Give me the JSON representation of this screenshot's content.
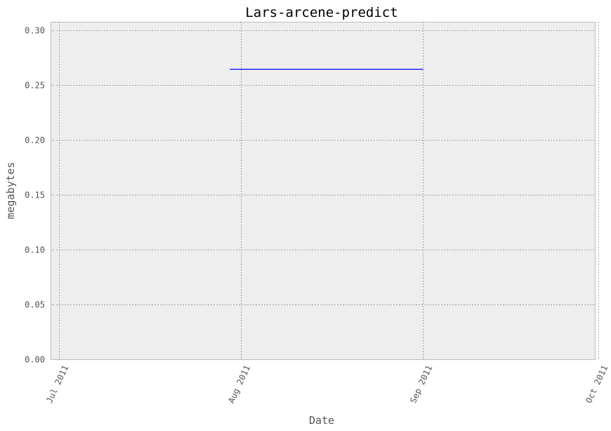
{
  "chart_data": {
    "type": "line",
    "title": "Lars-arcene-predict",
    "xlabel": "Date",
    "ylabel": "megabytes",
    "x_axis_type": "date",
    "xlim": [
      "2011-07-01",
      "2011-10-01"
    ],
    "ylim": [
      0,
      0.3
    ],
    "xticks": [
      {
        "date": "2011-07-01",
        "label": "Jul 2011"
      },
      {
        "date": "2011-08-01",
        "label": "Aug 2011"
      },
      {
        "date": "2011-09-01",
        "label": "Sep 2011"
      },
      {
        "date": "2011-10-01",
        "label": "Oct 2011"
      }
    ],
    "yticks": [
      {
        "value": 0.0,
        "label": "0.00"
      },
      {
        "value": 0.05,
        "label": "0.05"
      },
      {
        "value": 0.1,
        "label": "0.10"
      },
      {
        "value": 0.15,
        "label": "0.15"
      },
      {
        "value": 0.2,
        "label": "0.20"
      },
      {
        "value": 0.25,
        "label": "0.25"
      },
      {
        "value": 0.3,
        "label": "0.30"
      }
    ],
    "grid": true,
    "series": [
      {
        "color": "#0000ff",
        "points": [
          {
            "x": "2011-07-30",
            "y": 0.265
          },
          {
            "x": "2011-09-01",
            "y": 0.265
          }
        ]
      }
    ],
    "colors": {
      "plot_background": "#eeeeee",
      "frame": "#bcbcbc",
      "grid": "#555555",
      "text": "#555555",
      "title": "#000000"
    }
  }
}
